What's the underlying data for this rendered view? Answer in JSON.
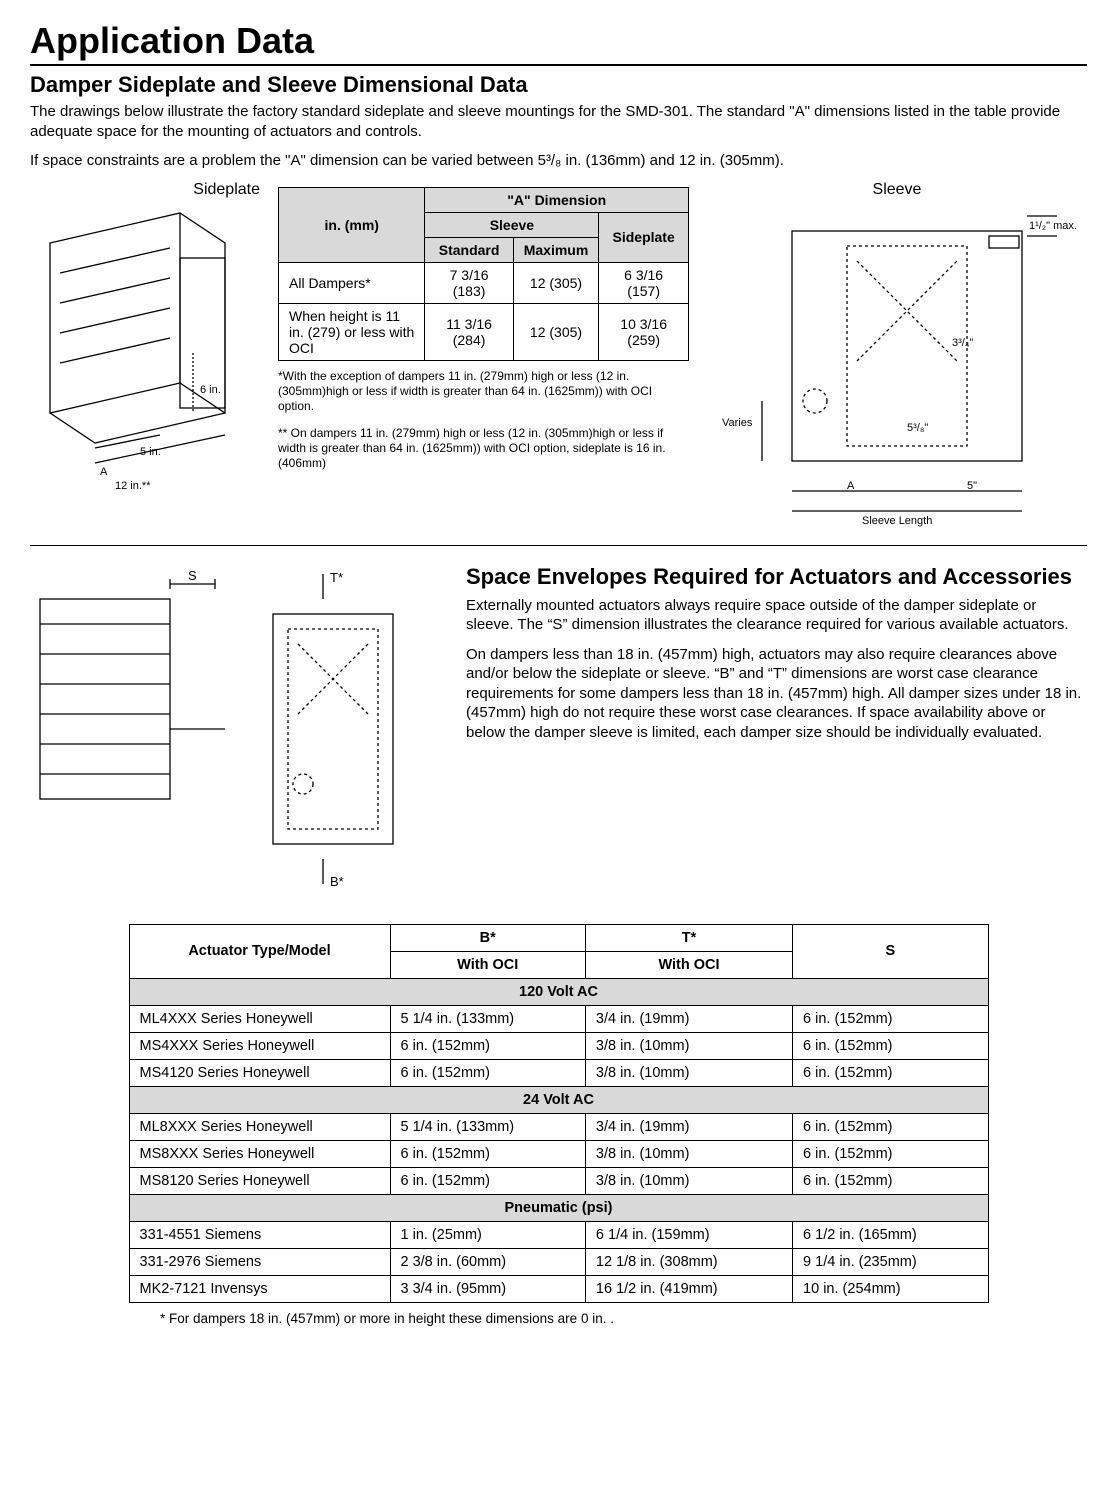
{
  "page_title": "Application Data",
  "section1_title": "Damper Sideplate and Sleeve Dimensional Data",
  "intro_p1": "The drawings below illustrate the factory standard sideplate and sleeve mountings for the SMD-301. The standard \"A\" dimensions listed in the table provide adequate space for the mounting of actuators and controls.",
  "intro_p2": "If space constraints are a problem the \"A\" dimension can be varied between 5³/₈ in. (136mm) and 12 in. (305mm).",
  "sideplate_label": "Sideplate",
  "sleeve_label": "Sleeve",
  "a_dim_table": {
    "col_unit": "in. (mm)",
    "col_a": "\"A\" Dimension",
    "col_sleeve": "Sleeve",
    "col_sideplate": "Sideplate",
    "col_standard": "Standard",
    "col_maximum": "Maximum",
    "rows": [
      {
        "label": "All Dampers*",
        "standard": "7 3/16 (183)",
        "maximum": "12 (305)",
        "sideplate": "6 3/16 (157)"
      },
      {
        "label": "When height is 11 in. (279) or less with OCI",
        "standard": "11 3/16 (284)",
        "maximum": "12 (305)",
        "sideplate": "10 3/16 (259)"
      }
    ],
    "footnote1": "*With the exception of dampers 11 in. (279mm) high or less (12 in. (305mm)high or less if  width is greater than 64 in. (1625mm)) with OCI option.",
    "footnote2": "** On dampers 11 in. (279mm) high or less (12 in.  (305mm)high or less if width is greater than 64 in. (1625mm)) with OCI option, sideplate is 16 in. (406mm)"
  },
  "sideplate_dims": {
    "six": "6 in.",
    "five": "5 in.",
    "a": "A",
    "twelve": "12 in.**"
  },
  "sleeve_dims": {
    "varies": "Varies",
    "a": "A",
    "five": "5\"",
    "sleeve_len": "Sleeve Length",
    "three34": "3³/₄\"",
    "five38": "5³/₈\"",
    "one12": "1¹/₂\" max."
  },
  "space_title": "Space Envelopes Required for Actuators and Accessories",
  "space_p1": "Externally mounted actuators always require space outside of the damper sideplate or sleeve. The “S” dimension illustrates the clearance required for various available actuators.",
  "space_p2": "On dampers less than 18 in. (457mm) high, actuators may also require clearances above and/or below the sideplate or sleeve. “B” and “T” dimensions are worst case clearance requirements for some dampers less than 18 in. (457mm) high. All damper sizes under 18 in. (457mm) high do not require these worst case clearances. If space availability above or below the damper sleeve is limited, each damper size should be individually evaluated.",
  "diagram2_labels": {
    "s": "S",
    "t": "T*",
    "b": "B*"
  },
  "actuator_table": {
    "col_actuator": "Actuator Type/Model",
    "col_b": "B*",
    "col_t": "T*",
    "col_s": "S",
    "col_with_oci": "With OCI",
    "groups": [
      {
        "title": "120 Volt AC",
        "rows": [
          {
            "model": "ML4XXX Series Honeywell",
            "b": "5 1/4 in. (133mm)",
            "t": "3/4 in. (19mm)",
            "s": "6 in. (152mm)"
          },
          {
            "model": "MS4XXX Series Honeywell",
            "b": "6 in. (152mm)",
            "t": "3/8 in. (10mm)",
            "s": "6 in. (152mm)"
          },
          {
            "model": "MS4120 Series Honeywell",
            "b": "6 in. (152mm)",
            "t": "3/8 in. (10mm)",
            "s": "6 in. (152mm)"
          }
        ]
      },
      {
        "title": "24 Volt AC",
        "rows": [
          {
            "model": "ML8XXX Series Honeywell",
            "b": "5 1/4 in. (133mm)",
            "t": "3/4 in. (19mm)",
            "s": "6 in. (152mm)"
          },
          {
            "model": "MS8XXX Series Honeywell",
            "b": "6 in. (152mm)",
            "t": "3/8 in. (10mm)",
            "s": "6 in. (152mm)"
          },
          {
            "model": "MS8120 Series Honeywell",
            "b": "6 in. (152mm)",
            "t": "3/8 in. (10mm)",
            "s": "6 in. (152mm)"
          }
        ]
      },
      {
        "title": "Pneumatic (psi)",
        "rows": [
          {
            "model": "331-4551 Siemens",
            "b": "1 in. (25mm)",
            "t": "6 1/4 in. (159mm)",
            "s": "6 1/2 in. (165mm)"
          },
          {
            "model": "331-2976 Siemens",
            "b": "2 3/8 in. (60mm)",
            "t": "12 1/8 in. (308mm)",
            "s": "9 1/4 in. (235mm)"
          },
          {
            "model": "MK2-7121 Invensys",
            "b": "3 3/4 in. (95mm)",
            "t": "16 1/2 in. (419mm)",
            "s": "10 in. (254mm)"
          }
        ]
      }
    ],
    "footnote": "* For dampers 18 in. (457mm) or more in height these dimensions are 0 in. ."
  }
}
